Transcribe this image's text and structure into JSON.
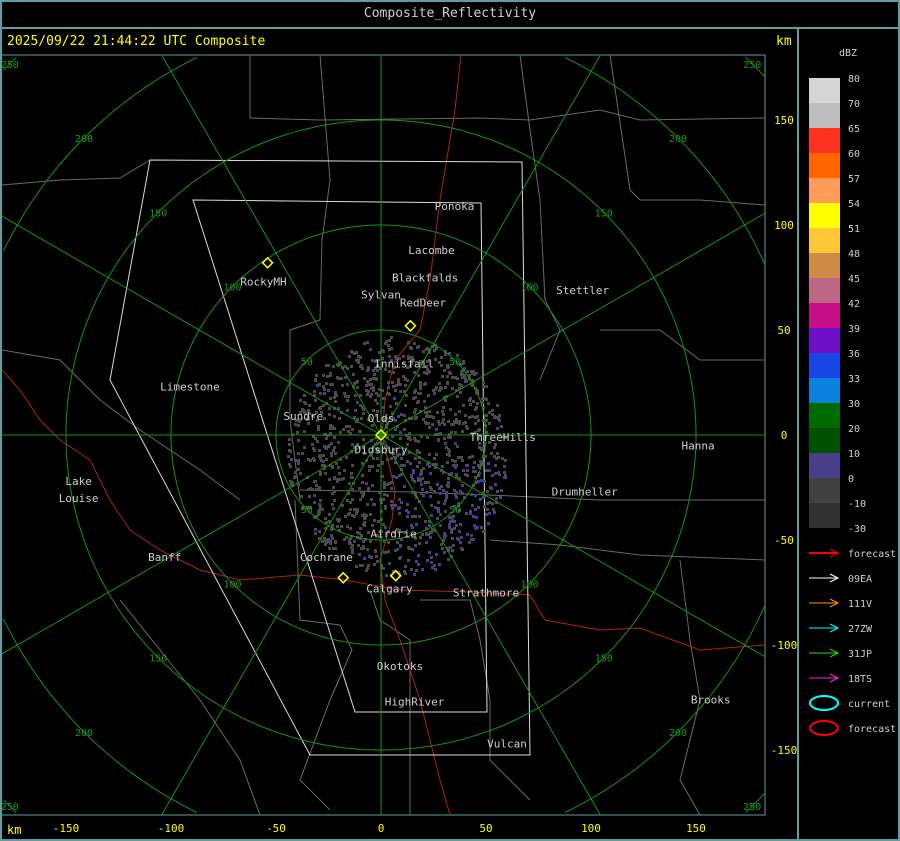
{
  "title": "Composite_Reflectivity",
  "timestamp": "2025/09/22 21:44:22 UTC Composite",
  "unit_top": "km",
  "unit_bottom": "km",
  "x_ticks": [
    -150,
    -100,
    -50,
    0,
    50,
    100,
    150
  ],
  "y_ticks": [
    150,
    100,
    50,
    0,
    -50,
    -100,
    -150
  ],
  "range_rings_km": [
    50,
    100,
    150,
    200,
    250
  ],
  "cities": [
    {
      "name": "Ponoka",
      "x": 35,
      "y": 109
    },
    {
      "name": "Lacombe",
      "x": 24,
      "y": 88
    },
    {
      "name": "Blackfalds",
      "x": 21,
      "y": 75
    },
    {
      "name": "Sylvan",
      "x": 0,
      "y": 67
    },
    {
      "name": "RedDeer",
      "x": 20,
      "y": 63
    },
    {
      "name": "Stettler",
      "x": 96,
      "y": 69
    },
    {
      "name": "RockyMH",
      "x": -56,
      "y": 73
    },
    {
      "name": "Innisfail",
      "x": 11,
      "y": 34
    },
    {
      "name": "Limestone",
      "x": -91,
      "y": 23
    },
    {
      "name": "Sundre",
      "x": -37,
      "y": 9
    },
    {
      "name": "Olds",
      "x": 0,
      "y": 8
    },
    {
      "name": "Didsbury",
      "x": 0,
      "y": -7
    },
    {
      "name": "ThreeHills",
      "x": 58,
      "y": -1
    },
    {
      "name": "Hanna",
      "x": 151,
      "y": -5
    },
    {
      "name": "Drumheller",
      "x": 97,
      "y": -27
    },
    {
      "name": "Lake",
      "x": -144,
      "y": -22
    },
    {
      "name": "Louise",
      "x": -144,
      "y": -30
    },
    {
      "name": "Airdrie",
      "x": 6,
      "y": -47
    },
    {
      "name": "Banff",
      "x": -103,
      "y": -58
    },
    {
      "name": "Cochrane",
      "x": -26,
      "y": -58
    },
    {
      "name": "Calgary",
      "x": 4,
      "y": -73
    },
    {
      "name": "Strathmore",
      "x": 50,
      "y": -75
    },
    {
      "name": "Okotoks",
      "x": 9,
      "y": -110
    },
    {
      "name": "HighRiver",
      "x": 16,
      "y": -127
    },
    {
      "name": "Brooks",
      "x": 157,
      "y": -126
    },
    {
      "name": "Vulcan",
      "x": 60,
      "y": -147
    }
  ],
  "radar_sites": [
    [
      0,
      0
    ],
    [
      -54,
      82
    ],
    [
      14,
      52
    ],
    [
      -18,
      -68
    ],
    [
      7,
      -67
    ]
  ],
  "legend": {
    "title": "dBZ",
    "labels": [
      "80",
      "70",
      "65",
      "60",
      "57",
      "54",
      "51",
      "48",
      "45",
      "42",
      "39",
      "36",
      "33",
      "30",
      "20",
      "10",
      "0",
      "-10",
      "-30"
    ],
    "colors": [
      "#d6d6d6",
      "#bdbdbd",
      "#ff3320",
      "#ff6600",
      "#ff9c5a",
      "#ffff00",
      "#ffc637",
      "#cf8a43",
      "#bd6683",
      "#c60f86",
      "#6e0fc6",
      "#1746e3",
      "#0b80dc",
      "#006c00",
      "#005200",
      "#493e8a",
      "#414141",
      "#323232"
    ]
  },
  "tracks": [
    {
      "label": "forecast",
      "color": "#ff0000",
      "kind": "arrow"
    },
    {
      "label": "09EA",
      "color": "#ffffff",
      "kind": "arrow"
    },
    {
      "label": "111V",
      "color": "#ff9900",
      "kind": "arrow"
    },
    {
      "label": "27ZW",
      "color": "#00ffff",
      "kind": "arrow"
    },
    {
      "label": "31JP",
      "color": "#22dd22",
      "kind": "arrow"
    },
    {
      "label": "18TS",
      "color": "#ff22dd",
      "kind": "arrow"
    },
    {
      "label": "current",
      "color": "#00ffff",
      "kind": "ellipse"
    },
    {
      "label": "forecast",
      "color": "#ff0000",
      "kind": "ellipse"
    }
  ]
}
